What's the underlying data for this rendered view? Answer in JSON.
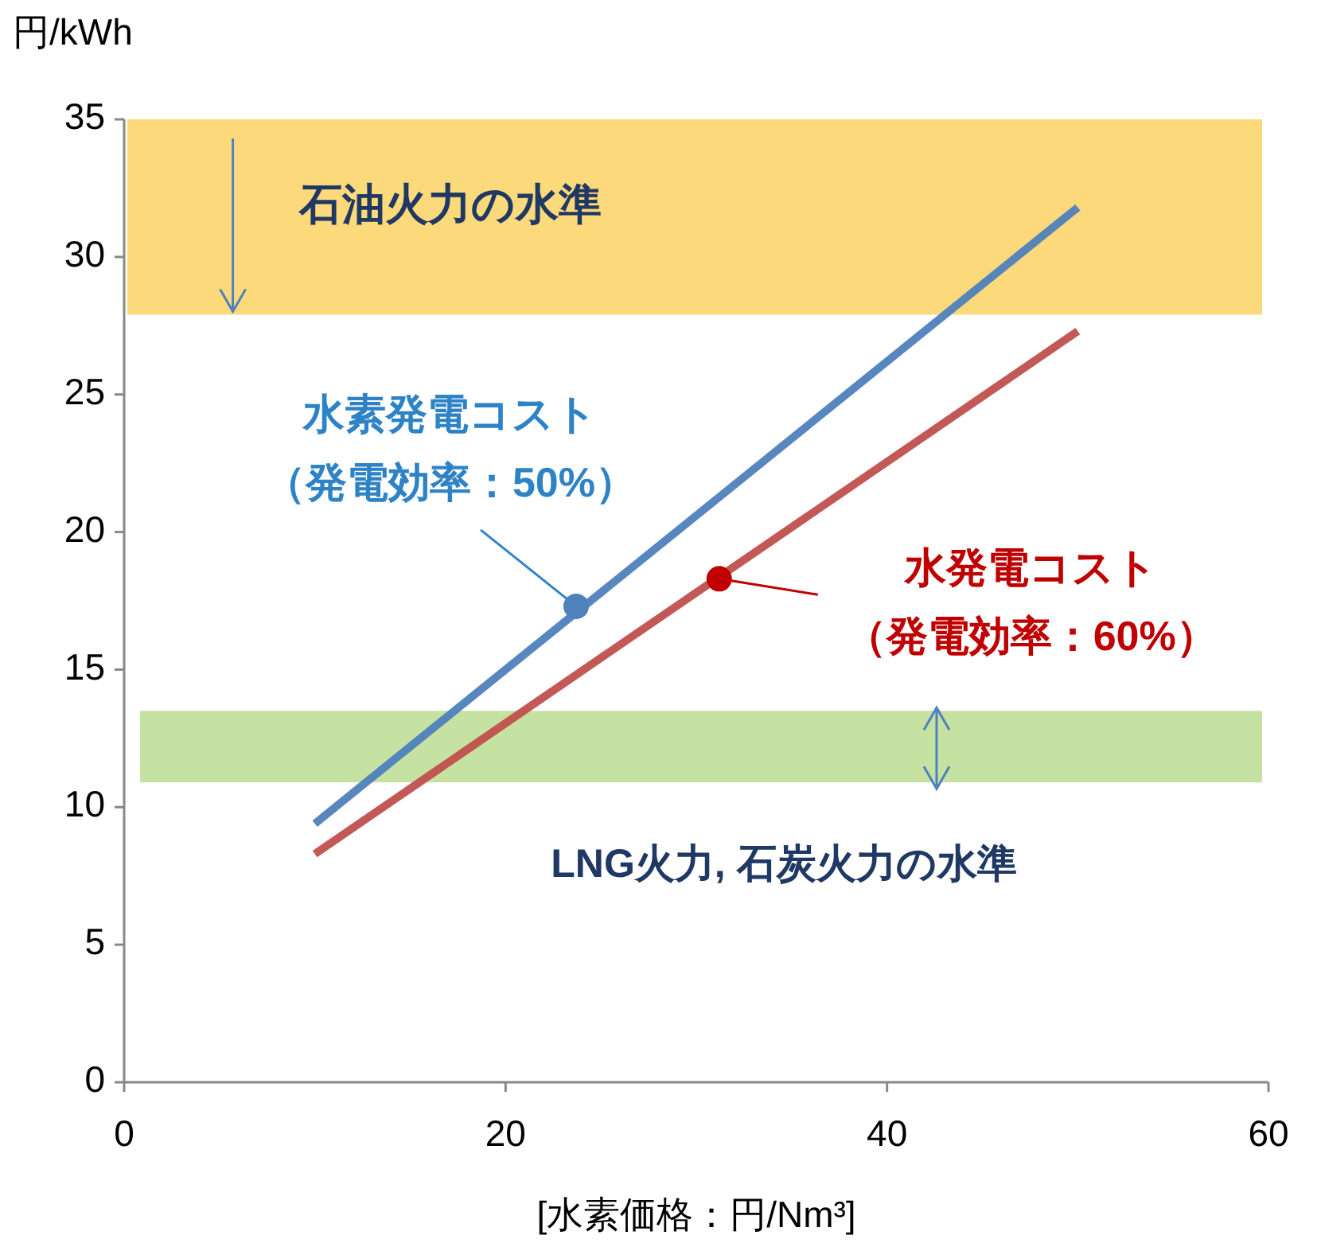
{
  "chart_data": {
    "type": "line",
    "ylabel": "円/kWh",
    "xlabel": "[水素価格：円/Nm³]",
    "xlim": [
      0,
      60
    ],
    "xticks": [
      0,
      20,
      40,
      60
    ],
    "ylim": [
      0,
      35
    ],
    "yticks": [
      0,
      5,
      10,
      15,
      20,
      25,
      30,
      35
    ],
    "grid": false,
    "marker": "none",
    "line_style": "solid",
    "series": [
      {
        "color": "#4f81bd",
        "x": [
          10,
          50
        ],
        "values": [
          9.4,
          31.8
        ]
      },
      {
        "color": "#c0504d",
        "x": [
          10,
          50
        ],
        "values": [
          8.3,
          27.3
        ]
      },
      {
        "type": "scatter",
        "name": "水素発電コスト（発電効率：50%）",
        "color": "#4f81bd",
        "marker": "circle",
        "x": [
          23.7
        ],
        "values": [
          17.3
        ]
      },
      {
        "type": "scatter",
        "name": "水発電コスト（発電効率：60%）",
        "color": "#c00000",
        "marker": "circle",
        "x": [
          31.2
        ],
        "values": [
          18.3
        ]
      }
    ],
    "bands": [
      {
        "axis": "y",
        "from": 27.9,
        "to": 35,
        "label": "石油火力の水準",
        "color": "#fcd97a"
      },
      {
        "axis": "y",
        "from": 10.9,
        "to": 13.5,
        "label": "LNG火力, 石炭火力の水準",
        "color": "#c6e2a2"
      }
    ]
  }
}
